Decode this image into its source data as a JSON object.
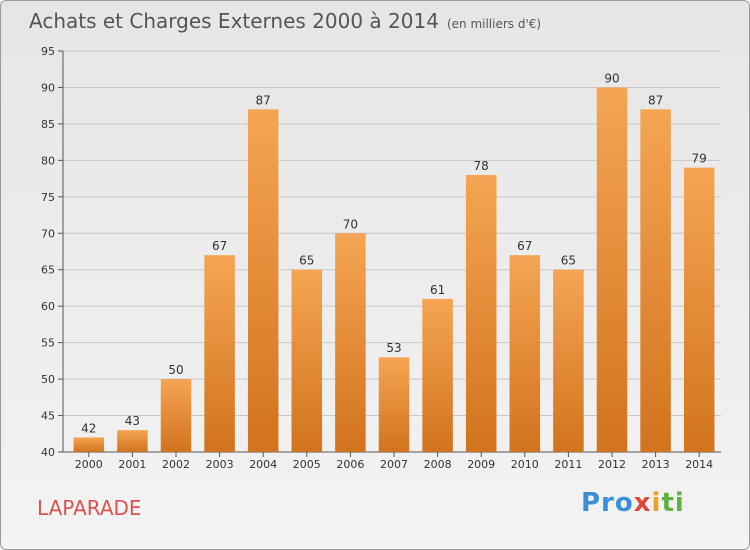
{
  "title": "Achats et Charges Externes 2000 à 2014",
  "unit": "(en milliers d'€)",
  "commune": "LAPARADE",
  "logo": {
    "p1": "Pro",
    "p2": "x",
    "p3": "i",
    "p4": "ti"
  },
  "colors": {
    "bar_top": "#f5a553",
    "bar_bottom": "#d2731d",
    "grid": "#c8c8c8"
  },
  "chart_data": {
    "type": "bar",
    "categories": [
      "2000",
      "2001",
      "2002",
      "2003",
      "2004",
      "2005",
      "2006",
      "2007",
      "2008",
      "2009",
      "2010",
      "2011",
      "2012",
      "2013",
      "2014"
    ],
    "values": [
      42,
      43,
      50,
      67,
      87,
      65,
      70,
      53,
      61,
      78,
      67,
      65,
      90,
      87,
      79
    ],
    "ylim": [
      40,
      95
    ],
    "yticks": [
      40,
      45,
      50,
      55,
      60,
      65,
      70,
      75,
      80,
      85,
      90,
      95
    ],
    "grid": true
  }
}
